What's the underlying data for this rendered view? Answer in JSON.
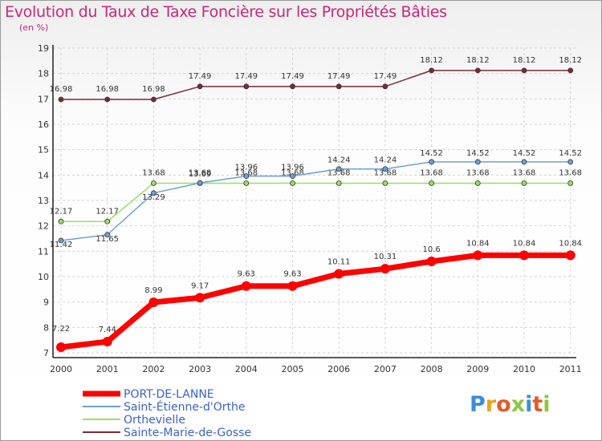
{
  "chart_data": {
    "type": "line",
    "title": "Evolution du Taux de Taxe Foncière sur les Propriétés Bâties",
    "subtitle": "(en %)",
    "xlabel": "",
    "ylabel": "(en %)",
    "x": [
      "2000",
      "2001",
      "2002",
      "2003",
      "2004",
      "2005",
      "2006",
      "2007",
      "2008",
      "2009",
      "2010",
      "2011"
    ],
    "ylim": [
      7,
      19
    ],
    "yticks": [
      "7",
      "8",
      "9",
      "10",
      "11",
      "12",
      "13",
      "14",
      "15",
      "16",
      "17",
      "18",
      "19"
    ],
    "grid": true,
    "legend_position": "bottom-left",
    "series": [
      {
        "name": "PORT-DE-LANNE",
        "color": "#ff0000",
        "values": [
          7.22,
          7.44,
          8.99,
          9.17,
          9.63,
          9.63,
          10.11,
          10.31,
          10.6,
          10.84,
          10.84,
          10.84
        ],
        "labels": [
          "7.22",
          "7.44",
          "8.99",
          "9.17",
          "9.63",
          "9.63",
          "10.11",
          "10.31",
          "10.6",
          "10.84",
          "10.84",
          "10.84"
        ]
      },
      {
        "name": "Saint-Étienne-d'Orthe",
        "color": "#6fa0d0",
        "values": [
          11.42,
          11.65,
          13.29,
          13.69,
          13.96,
          13.96,
          14.24,
          14.24,
          14.52,
          14.52,
          14.52,
          14.52
        ],
        "labels": [
          "11.42",
          "11.65",
          "13.29",
          "13.69",
          "13.96",
          "13.96",
          "14.24",
          "14.24",
          "14.52",
          "14.52",
          "14.52",
          "14.52"
        ]
      },
      {
        "name": "Orthevielle",
        "color": "#99dd66",
        "values": [
          12.17,
          12.17,
          13.68,
          13.68,
          13.68,
          13.68,
          13.68,
          13.68,
          13.68,
          13.68,
          13.68,
          13.68
        ],
        "labels": [
          "12.17",
          "12.17",
          "13.68",
          "13.68",
          "13.68",
          "13.68",
          "13.68",
          "13.68",
          "13.68",
          "13.68",
          "13.68",
          "13.68"
        ]
      },
      {
        "name": "Sainte-Marie-de-Gosse",
        "color": "#7a2b35",
        "values": [
          16.98,
          16.98,
          16.98,
          17.49,
          17.49,
          17.49,
          17.49,
          17.49,
          18.12,
          18.12,
          18.12,
          18.12
        ],
        "labels": [
          "16.98",
          "16.98",
          "16.98",
          "17.49",
          "17.49",
          "17.49",
          "17.49",
          "17.49",
          "18.12",
          "18.12",
          "18.12",
          "18.12"
        ]
      }
    ]
  },
  "logo": {
    "text": "Proxiti",
    "colors": [
      "#3b8fd8",
      "#e9a321",
      "#e55a2a",
      "#8cc63f",
      "#3b8fd8",
      "#e55a2a",
      "#8cc63f"
    ]
  }
}
